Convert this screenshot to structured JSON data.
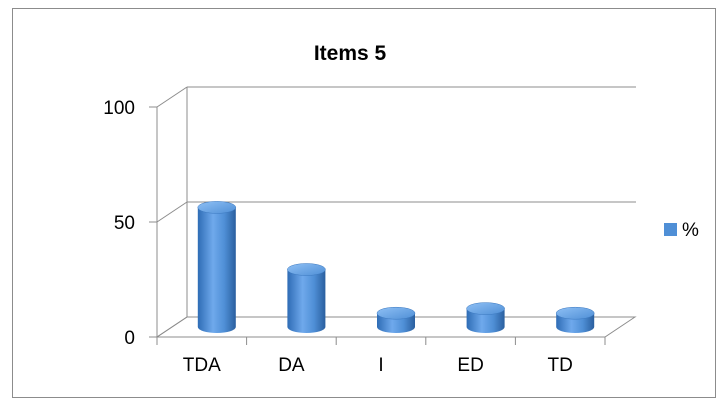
{
  "chart_data": {
    "type": "bar",
    "title": "Items 5",
    "categories": [
      "TDA",
      "DA",
      "I",
      "ED",
      "TD"
    ],
    "series": [
      {
        "name": "%",
        "values": [
          52,
          25,
          6,
          8,
          6
        ],
        "color": "#4f8fd6"
      }
    ],
    "ylim": [
      0,
      100
    ],
    "yticks": [
      0,
      50,
      100
    ],
    "xlabel": "",
    "ylabel": "",
    "grid": true,
    "legend": "right",
    "style": "3d-cylinder"
  }
}
